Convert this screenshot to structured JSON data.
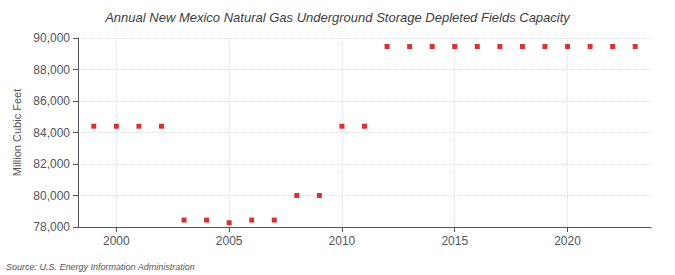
{
  "chart_data": {
    "type": "scatter",
    "title": "Annual New Mexico Natural Gas Underground Storage Depleted Fields Capacity",
    "ylabel": "Million Cubic Feet",
    "annotations": [
      "Source: U.S. Energy Information Administration"
    ],
    "x": [
      1999,
      2000,
      2001,
      2002,
      2003,
      2004,
      2005,
      2006,
      2007,
      2008,
      2009,
      2010,
      2011,
      2012,
      2013,
      2014,
      2015,
      2016,
      2017,
      2018,
      2019,
      2020,
      2021,
      2022,
      2023
    ],
    "values": [
      84400,
      84400,
      84400,
      84400,
      78440,
      78440,
      78270,
      78440,
      78440,
      80000,
      80000,
      84400,
      84400,
      89460,
      89460,
      89460,
      89460,
      89460,
      89460,
      89460,
      89460,
      89460,
      89460,
      89460,
      89460
    ],
    "color": "#cc0000",
    "marker": "square",
    "xlim": [
      1998.3,
      2023.7
    ],
    "xticks": [
      2000,
      2005,
      2010,
      2015,
      2020
    ],
    "ylim": [
      78000,
      90000
    ],
    "yticks": [
      {
        "value": 78000,
        "label": "78,000"
      },
      {
        "value": 80000,
        "label": "80,000"
      },
      {
        "value": 82000,
        "label": "82,000"
      },
      {
        "value": 84000,
        "label": "84,000"
      },
      {
        "value": 86000,
        "label": "86,000"
      },
      {
        "value": 88000,
        "label": "88,000"
      },
      {
        "value": 90000,
        "label": "90,000"
      }
    ],
    "grid": true
  }
}
